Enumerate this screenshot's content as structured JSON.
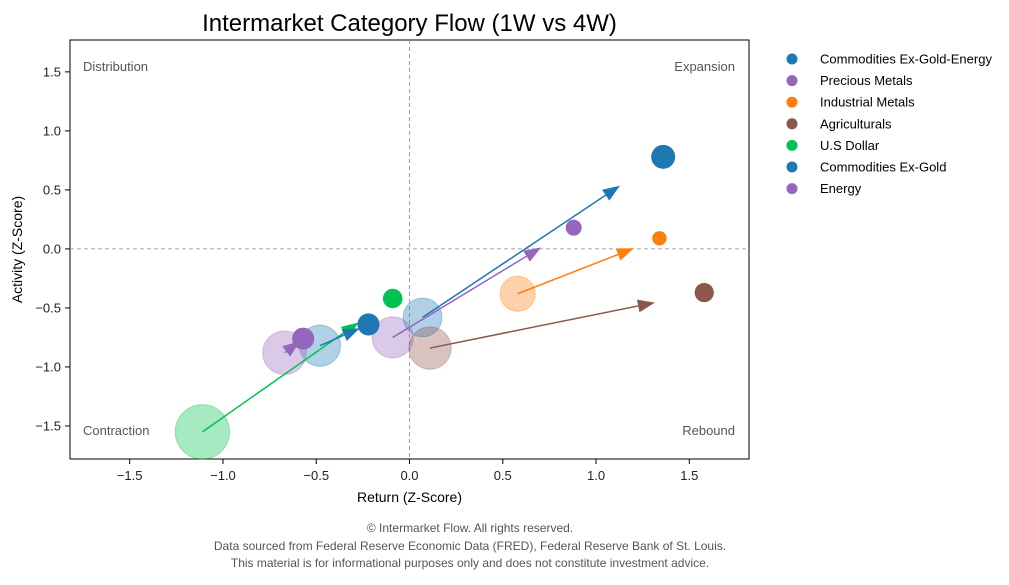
{
  "chart_data": {
    "type": "scatter",
    "title": "Intermarket Category Flow (1W vs 4W)",
    "xlabel": "Return (Z-Score)",
    "ylabel": "Activity (Z-Score)",
    "xlim": [
      -1.82,
      1.82
    ],
    "ylim": [
      -1.78,
      1.77
    ],
    "xticks": [
      -1.5,
      -1.0,
      -0.5,
      0.0,
      0.5,
      1.0,
      1.5
    ],
    "yticks": [
      -1.5,
      -1.0,
      -0.5,
      0.0,
      0.5,
      1.0,
      1.5
    ],
    "xtick_labels": [
      "−1.5",
      "−1.0",
      "−0.5",
      "0.0",
      "0.5",
      "1.0",
      "1.5"
    ],
    "ytick_labels": [
      "−1.5",
      "−1.0",
      "−0.5",
      "0.0",
      "0.5",
      "1.0",
      "1.5"
    ],
    "grid": false,
    "reference_lines": {
      "x": 0,
      "y": 0,
      "style": "dashed"
    },
    "quadrant_labels": {
      "top_left": "Distribution",
      "top_right": "Expansion",
      "bottom_left": "Contraction",
      "bottom_right": "Rebound"
    },
    "legend_position": "outside-right",
    "series": [
      {
        "name": "Commodities Ex-Gold-Energy",
        "color": "#1f77b4",
        "from": [
          0.07,
          -0.58
        ],
        "to": [
          1.36,
          0.78
        ],
        "from_size": 0.95,
        "to_size": 1.0
      },
      {
        "name": "Precious Metals",
        "color": "#9467bd",
        "from": [
          -0.09,
          -0.75
        ],
        "to": [
          0.88,
          0.18
        ],
        "from_size": 1.05,
        "to_size": 0.5
      },
      {
        "name": "Industrial Metals",
        "color": "#ff7f0e",
        "from": [
          0.58,
          -0.38
        ],
        "to": [
          1.34,
          0.09
        ],
        "from_size": 0.8,
        "to_size": 0.4
      },
      {
        "name": "Agriculturals",
        "color": "#8c564b",
        "from": [
          0.11,
          -0.84
        ],
        "to": [
          1.58,
          -0.37
        ],
        "from_size": 1.1,
        "to_size": 0.7
      },
      {
        "name": "U.S Dollar",
        "color": "#00c250",
        "from": [
          -1.11,
          -1.55
        ],
        "to": [
          -0.09,
          -0.42
        ],
        "from_size": 1.6,
        "to_size": 0.72
      },
      {
        "name": "Commodities Ex-Gold",
        "color": "#1f77b4",
        "from": [
          -0.48,
          -0.82
        ],
        "to": [
          -0.22,
          -0.64
        ],
        "from_size": 1.05,
        "to_size": 0.88
      },
      {
        "name": "Energy",
        "color": "#9467bd",
        "from": [
          -0.67,
          -0.88
        ],
        "to": [
          -0.57,
          -0.76
        ],
        "from_size": 1.15,
        "to_size": 0.88
      }
    ]
  },
  "footer": {
    "line1": "© Intermarket Flow. All rights reserved.",
    "line2": "Data sourced from Federal Reserve Economic Data (FRED), Federal Reserve Bank of St. Louis.",
    "line3": "This material is for informational purposes only and does not constitute investment advice."
  }
}
